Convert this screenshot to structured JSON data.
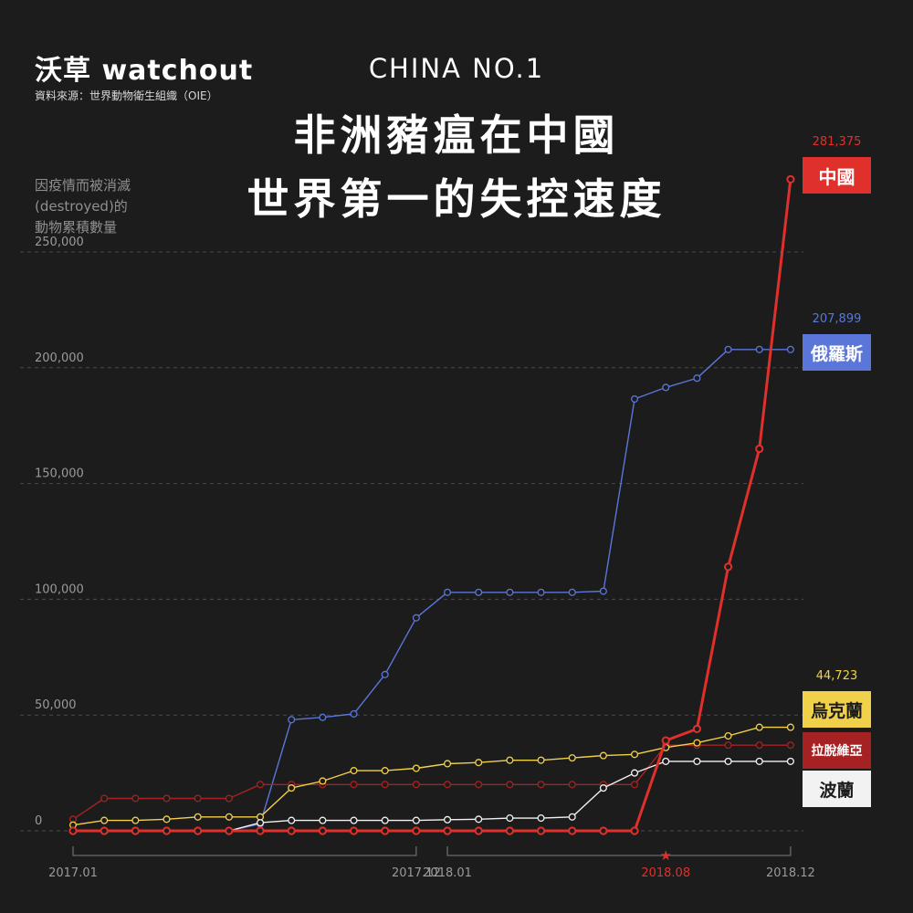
{
  "header": {
    "brand": "沃草 watchout",
    "source": "資料來源：世界動物衛生組織（OIE）",
    "kicker": "CHINA NO.1",
    "title_line1": "非洲豬瘟在中國",
    "title_line2": "世界第一的失控速度"
  },
  "colors": {
    "background": "#1c1c1c",
    "china": "#e0302b",
    "russia": "#5a76d8",
    "ukraine": "#f2d14a",
    "latvia": "#a62222",
    "poland": "#f2f2f2"
  },
  "chart_data": {
    "type": "line",
    "title": "非洲豬瘟在中國 世界第一的失控速度",
    "ylabel": "因疫情而被消滅(destroyed)的動物累積數量",
    "ylabel_lines": [
      "因疫情而被消滅",
      "(destroyed)的",
      "動物累積數量"
    ],
    "ylim": [
      0,
      250000
    ],
    "yticks": [
      0,
      50000,
      100000,
      150000,
      200000,
      250000
    ],
    "ytick_labels": [
      "0",
      "50,000",
      "100,000",
      "150,000",
      "200,000",
      "250,000"
    ],
    "grid": true,
    "x_periods": [
      "2017.01",
      "2017.02",
      "2017.03",
      "2017.04",
      "2017.05",
      "2017.06",
      "2017.07",
      "2017.08",
      "2017.09",
      "2017.10",
      "2017.11",
      "2017.12",
      "2018.01",
      "2018.02",
      "2018.03",
      "2018.04",
      "2018.05",
      "2018.06",
      "2018.07",
      "2018.08",
      "2018.09",
      "2018.10",
      "2018.11",
      "2018.12"
    ],
    "xtick_labels": [
      {
        "label": "2017.01",
        "index": 0
      },
      {
        "label": "2017.12",
        "index": 11
      },
      {
        "label": "2018.01",
        "index": 12
      },
      {
        "label": "2018.08",
        "index": 19,
        "highlight": true
      },
      {
        "label": "2018.12",
        "index": 23
      }
    ],
    "year_brackets": [
      [
        0,
        11
      ],
      [
        12,
        23
      ]
    ],
    "series": [
      {
        "name": "俄羅斯",
        "key": "russia",
        "final_label": "207,899",
        "values": [
          0,
          0,
          0,
          0,
          0,
          0,
          3000,
          48000,
          49000,
          50500,
          67500,
          92000,
          103000,
          103000,
          103000,
          103000,
          103000,
          103500,
          186500,
          191500,
          195500,
          207899,
          207899,
          207899
        ]
      },
      {
        "name": "拉脫維亞",
        "key": "latvia",
        "values": [
          5000,
          14000,
          14000,
          14000,
          14000,
          14000,
          20000,
          20000,
          20000,
          20000,
          20000,
          20000,
          20000,
          20000,
          20000,
          20000,
          20000,
          20000,
          20000,
          37000,
          37000,
          37000,
          37000,
          37000
        ]
      },
      {
        "name": "烏克蘭",
        "key": "ukraine",
        "final_label": "44,723",
        "values": [
          2500,
          4500,
          4500,
          5000,
          6000,
          6000,
          6000,
          18500,
          21500,
          26000,
          26000,
          27000,
          29000,
          29500,
          30500,
          30500,
          31500,
          32500,
          33000,
          36000,
          38000,
          41000,
          44723,
          44723
        ]
      },
      {
        "name": "波蘭",
        "key": "poland",
        "values": [
          0,
          0,
          0,
          0,
          0,
          0,
          3500,
          4500,
          4500,
          4500,
          4500,
          4500,
          4800,
          5000,
          5500,
          5500,
          6000,
          18500,
          25000,
          30000,
          30000,
          30000,
          30000,
          30000
        ]
      },
      {
        "name": "中國",
        "key": "china",
        "final_label": "281,375",
        "values": [
          0,
          0,
          0,
          0,
          0,
          0,
          0,
          0,
          0,
          0,
          0,
          0,
          0,
          0,
          0,
          0,
          0,
          0,
          0,
          39000,
          44000,
          114000,
          165000,
          281375
        ]
      }
    ],
    "legend": [
      {
        "name": "中國",
        "key": "china",
        "value_label": "281,375"
      },
      {
        "name": "俄羅斯",
        "key": "russia",
        "value_label": "207,899"
      },
      {
        "name": "烏克蘭",
        "key": "ukraine",
        "value_label": "44,723"
      },
      {
        "name": "拉脫維亞",
        "key": "latvia"
      },
      {
        "name": "波蘭",
        "key": "poland"
      }
    ],
    "legend_placement": "right"
  }
}
